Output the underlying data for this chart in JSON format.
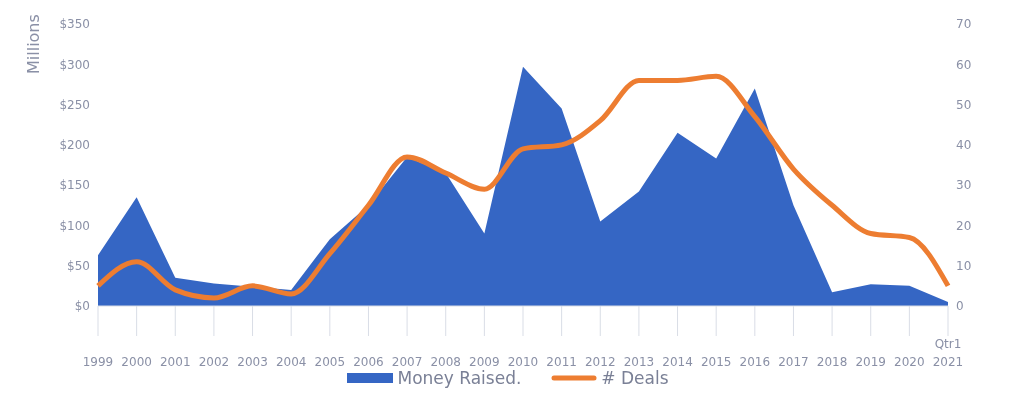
{
  "chart_data": {
    "type": "area",
    "ylabel": "Millions",
    "categories": [
      "1999",
      "2000",
      "2001",
      "2002",
      "2003",
      "2004",
      "2005",
      "2006",
      "2007",
      "2008",
      "2009",
      "2010",
      "2011",
      "2012",
      "2013",
      "2014",
      "2015",
      "2016",
      "2017",
      "2018",
      "2019",
      "2020",
      "Qtr1 2021"
    ],
    "series": [
      {
        "name": "Money Raised.",
        "color": "#3566c4",
        "values": [
          63,
          135,
          35,
          28,
          24,
          20,
          83,
          125,
          185,
          165,
          90,
          297,
          245,
          105,
          142,
          215,
          183,
          270,
          125,
          17,
          27,
          25,
          5
        ]
      },
      {
        "name": "# Deals",
        "type": "line",
        "axis": "y2",
        "color": "#ed7d31",
        "values": [
          5,
          11,
          4,
          2,
          5,
          3,
          13,
          25,
          37,
          33,
          29,
          39,
          40,
          46,
          56,
          56,
          57,
          47,
          34,
          25,
          18,
          17,
          5
        ]
      }
    ],
    "ylim": [
      0,
      350
    ],
    "yticks": [
      {
        "value": 0,
        "label": "$0"
      },
      {
        "value": 50,
        "label": "$50"
      },
      {
        "value": 100,
        "label": "$100"
      },
      {
        "value": 150,
        "label": "$150"
      },
      {
        "value": 200,
        "label": "$200"
      },
      {
        "value": 250,
        "label": "$250"
      },
      {
        "value": 300,
        "label": "$300"
      },
      {
        "value": 350,
        "label": "$350"
      }
    ],
    "y2lim": [
      0,
      70
    ],
    "y2ticks": [
      0,
      10,
      20,
      30,
      40,
      50,
      60,
      70
    ],
    "grid": false,
    "legend": "bottom",
    "marker": "none"
  }
}
